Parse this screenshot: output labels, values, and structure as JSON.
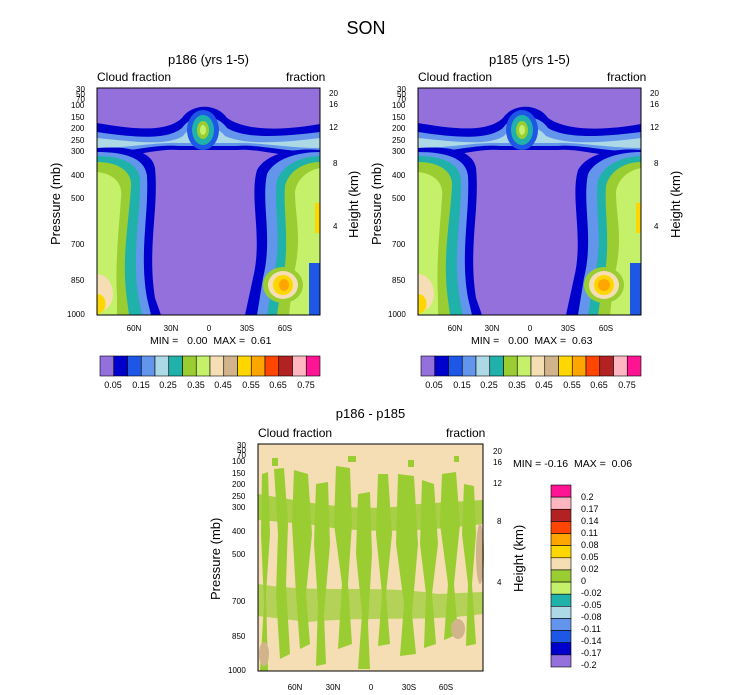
{
  "page_title": "SON",
  "chart_data": [
    {
      "type": "heatmap",
      "title": "p186 (yrs 1-5)",
      "left_string": "Cloud fraction",
      "right_string": "fraction",
      "ylabel": "Pressure (mb)",
      "ylabel_right": "Height (km)",
      "yticks_pressure": [
        "30",
        "50",
        "70",
        "100",
        "150",
        "200",
        "250",
        "300",
        "400",
        "500",
        "700",
        "850",
        "1000"
      ],
      "yticks_height": [
        "20",
        "16",
        "12",
        "8",
        "4"
      ],
      "xticks": [
        "60N",
        "30N",
        "0",
        "30S",
        "60S"
      ],
      "min_label": "MIN =",
      "min_value": "0.00",
      "max_label": "MAX =",
      "max_value": "0.61",
      "colorbar_labels": [
        "0.05",
        "0.15",
        "0.25",
        "0.35",
        "0.45",
        "0.55",
        "0.65",
        "0.75"
      ]
    },
    {
      "type": "heatmap",
      "title": "p185 (yrs 1-5)",
      "left_string": "Cloud fraction",
      "right_string": "fraction",
      "ylabel": "Pressure (mb)",
      "ylabel_right": "Height (km)",
      "yticks_pressure": [
        "30",
        "50",
        "70",
        "100",
        "150",
        "200",
        "250",
        "300",
        "400",
        "500",
        "700",
        "850",
        "1000"
      ],
      "yticks_height": [
        "20",
        "16",
        "12",
        "8",
        "4"
      ],
      "xticks": [
        "60N",
        "30N",
        "0",
        "30S",
        "60S"
      ],
      "min_label": "MIN =",
      "min_value": "0.00",
      "max_label": "MAX =",
      "max_value": "0.63",
      "colorbar_labels": [
        "0.05",
        "0.15",
        "0.25",
        "0.35",
        "0.45",
        "0.55",
        "0.65",
        "0.75"
      ]
    },
    {
      "type": "heatmap",
      "title": "p186 - p185",
      "left_string": "Cloud fraction",
      "right_string": "fraction",
      "ylabel": "Pressure (mb)",
      "ylabel_right": "Height (km)",
      "yticks_pressure": [
        "30",
        "50",
        "70",
        "100",
        "150",
        "200",
        "250",
        "300",
        "400",
        "500",
        "700",
        "850",
        "1000"
      ],
      "yticks_height": [
        "20",
        "16",
        "12",
        "8",
        "4"
      ],
      "xticks": [
        "60N",
        "30N",
        "0",
        "30S",
        "60S"
      ],
      "min_label": "MIN =",
      "min_value": "-0.16",
      "max_label": "MAX =",
      "max_value": "0.06",
      "colorbar_labels": [
        "0.2",
        "0.17",
        "0.14",
        "0.11",
        "0.08",
        "0.05",
        "0.02",
        "0",
        "-0.02",
        "-0.05",
        "-0.08",
        "-0.11",
        "-0.14",
        "-0.17",
        "-0.2"
      ]
    }
  ],
  "colors": {
    "abs_scale": [
      "#9370db",
      "#0000cd",
      "#1e56e6",
      "#6495ed",
      "#add8e6",
      "#20b2aa",
      "#9acd32",
      "#c5f06a",
      "#f5deb3",
      "#d2b48c",
      "#ffd700",
      "#ffa500",
      "#ff4500",
      "#b22222",
      "#ffb6c1",
      "#ff1493"
    ],
    "diff_scale": [
      "#ff1493",
      "#ffb6c1",
      "#b22222",
      "#ff4500",
      "#ffa500",
      "#ffd700",
      "#f5deb3",
      "#9acd32",
      "#c5f06a",
      "#20b2aa",
      "#add8e6",
      "#6495ed",
      "#1e56e6",
      "#0000cd",
      "#9370db"
    ]
  }
}
